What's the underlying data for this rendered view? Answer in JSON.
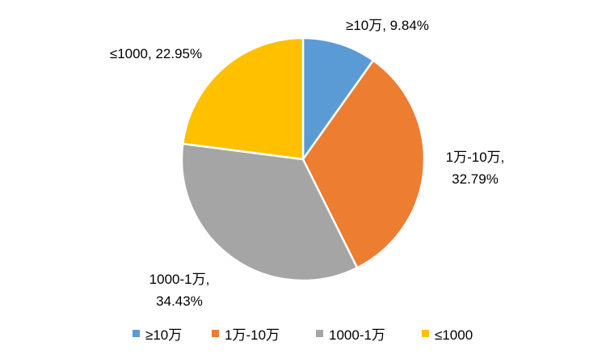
{
  "chart_data": {
    "type": "pie",
    "title": "",
    "slices": [
      {
        "label": "≥10万",
        "value": 9.84,
        "display": "9.84%",
        "color": "#5B9BD5"
      },
      {
        "label": "1万-10万",
        "value": 32.79,
        "display": "32.79%",
        "color": "#ED7D31"
      },
      {
        "label": "1000-1万",
        "value": 34.43,
        "display": "34.43%",
        "color": "#A5A5A5"
      },
      {
        "label": "≤1000",
        "value": 22.95,
        "display": "22.95%",
        "color": "#FFC000"
      }
    ],
    "start_angle_deg": 0,
    "direction": "clockwise",
    "legend_position": "bottom",
    "slice_border_color": "#FFFFFF"
  }
}
